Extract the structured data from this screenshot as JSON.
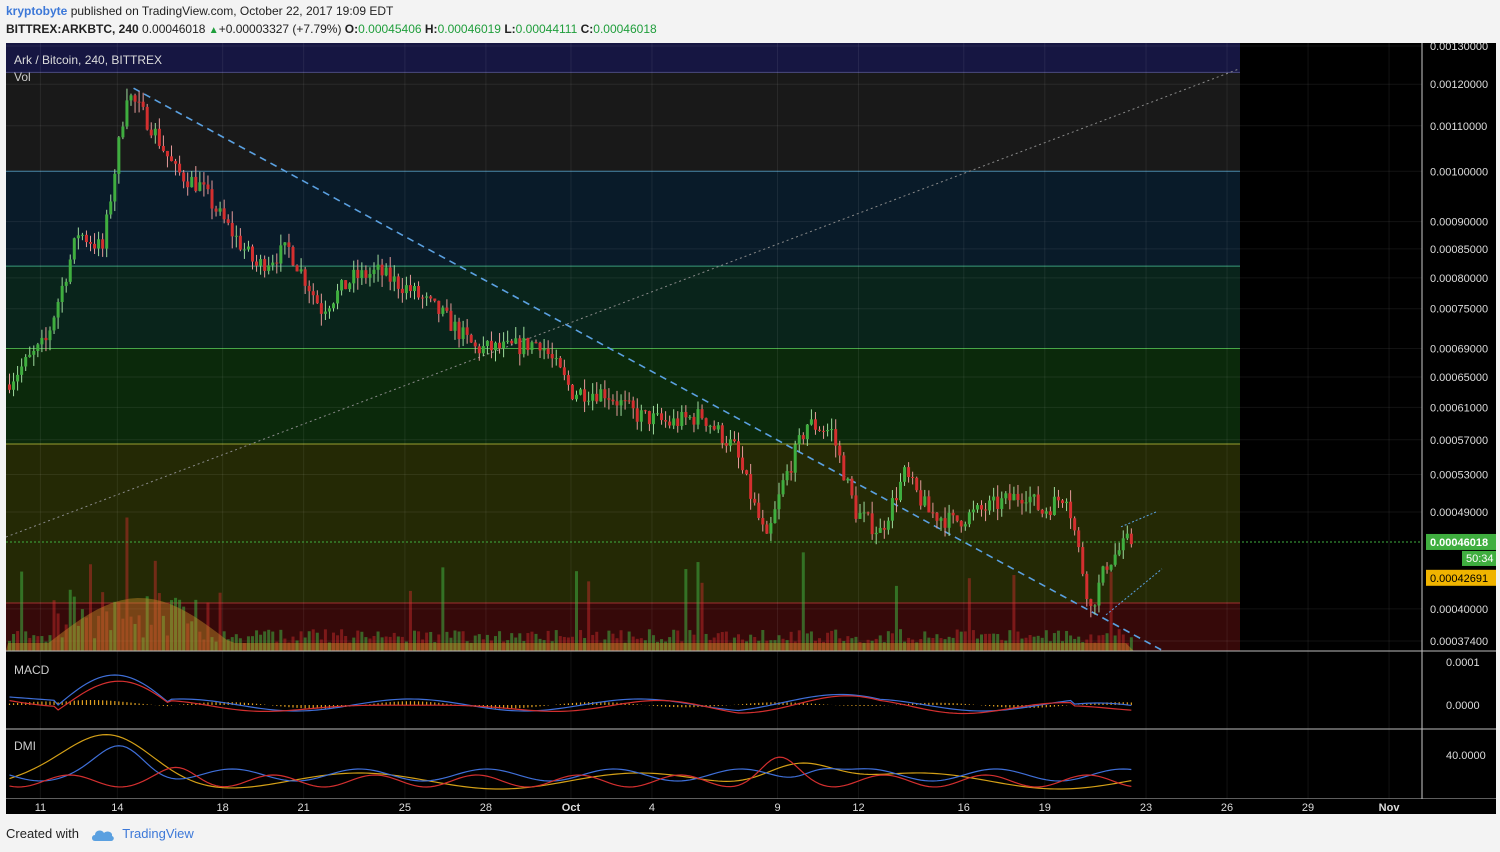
{
  "header": {
    "user": "kryptobyte",
    "published": "published on TradingView.com, October 22, 2017 19:09 EDT",
    "symbol": "BITTREX:ARKBTC, 240",
    "last": "0.00046018",
    "change": "+0.00003327 (+7.79%)",
    "o_label": "O:",
    "o": "0.00045406",
    "h_label": "H:",
    "h": "0.00046019",
    "l_label": "L:",
    "l": "0.00044111",
    "c_label": "C:",
    "c": "0.00046018"
  },
  "footer": {
    "created": "Created with",
    "brand": "TradingView"
  },
  "colors": {
    "up": "#3fae3f",
    "down": "#d32f2f",
    "trend": "#5aa0e0",
    "macd": "#3f6fd8",
    "signal": "#d32f2f",
    "dmi_plus": "#3f6fd8",
    "dmi_minus": "#d32f2f",
    "adx": "#d4a017"
  },
  "chart_data": {
    "type": "candlestick",
    "title": "Ark / Bitcoin, 240, BITTREX",
    "volume_label": "Vol",
    "macd_label": "MACD",
    "dmi_label": "DMI",
    "y_axis": {
      "scale": "log",
      "ticks": [
        "0.00130000",
        "0.00120000",
        "0.00110000",
        "0.00100000",
        "0.00090000",
        "0.00085000",
        "0.00080000",
        "0.00075000",
        "0.00069000",
        "0.00065000",
        "0.00061000",
        "0.00057000",
        "0.00053000",
        "0.00049000",
        "0.00040000",
        "0.00037400"
      ],
      "last_price_tag": "0.00046018",
      "countdown_tag": "50:34",
      "level_tag": "0.00042691"
    },
    "x_axis": {
      "ticks": [
        "11",
        "14",
        "18",
        "21",
        "25",
        "28",
        "Oct",
        "4",
        "9",
        "12",
        "16",
        "19",
        "23",
        "26",
        "29",
        "Nov"
      ]
    },
    "fib_levels": [
      0.00123,
      0.001,
      0.00082,
      0.00069,
      0.000565,
      0.000405
    ],
    "path_points": [
      {
        "t": 0,
        "p": 0.00064
      },
      {
        "t": 10,
        "p": 0.0007
      },
      {
        "t": 18,
        "p": 0.00088
      },
      {
        "t": 24,
        "p": 0.00085
      },
      {
        "t": 30,
        "p": 0.00118
      },
      {
        "t": 36,
        "p": 0.0011
      },
      {
        "t": 42,
        "p": 0.001
      },
      {
        "t": 48,
        "p": 0.00097
      },
      {
        "t": 54,
        "p": 0.0009
      },
      {
        "t": 62,
        "p": 0.00082
      },
      {
        "t": 70,
        "p": 0.00085
      },
      {
        "t": 78,
        "p": 0.00075
      },
      {
        "t": 86,
        "p": 0.0008
      },
      {
        "t": 92,
        "p": 0.00081
      },
      {
        "t": 100,
        "p": 0.00078
      },
      {
        "t": 108,
        "p": 0.00074
      },
      {
        "t": 116,
        "p": 0.00069
      },
      {
        "t": 124,
        "p": 0.00069
      },
      {
        "t": 132,
        "p": 0.0007
      },
      {
        "t": 140,
        "p": 0.00063
      },
      {
        "t": 148,
        "p": 0.00063
      },
      {
        "t": 156,
        "p": 0.0006
      },
      {
        "t": 164,
        "p": 0.00059
      },
      {
        "t": 172,
        "p": 0.0006
      },
      {
        "t": 180,
        "p": 0.00056
      },
      {
        "t": 188,
        "p": 0.00046
      },
      {
        "t": 192,
        "p": 0.00052
      },
      {
        "t": 198,
        "p": 0.00059
      },
      {
        "t": 204,
        "p": 0.00058
      },
      {
        "t": 210,
        "p": 0.00049
      },
      {
        "t": 216,
        "p": 0.00047
      },
      {
        "t": 222,
        "p": 0.00053
      },
      {
        "t": 228,
        "p": 0.00049
      },
      {
        "t": 234,
        "p": 0.00048
      },
      {
        "t": 240,
        "p": 0.00049
      },
      {
        "t": 246,
        "p": 0.0005
      },
      {
        "t": 252,
        "p": 0.00051
      },
      {
        "t": 256,
        "p": 0.00049
      },
      {
        "t": 262,
        "p": 0.00051
      },
      {
        "t": 268,
        "p": 0.0004
      },
      {
        "t": 272,
        "p": 0.00044
      },
      {
        "t": 277,
        "p": 0.00046018
      }
    ],
    "macd_axis_ticks": [
      "0.0001",
      "0.0000"
    ],
    "dmi_axis_ticks": [
      "40.0000"
    ]
  }
}
